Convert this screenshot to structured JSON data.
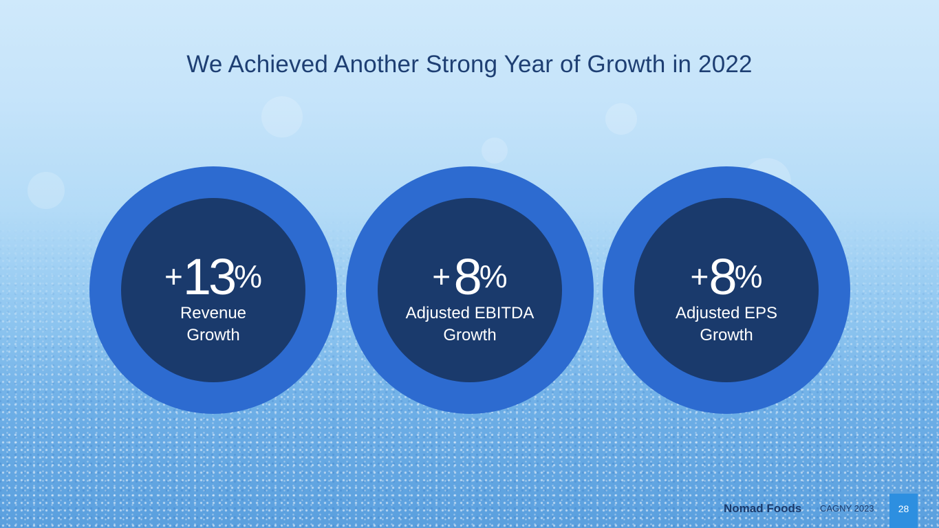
{
  "slide": {
    "title": "We Achieved Another Strong Year of Growth in 2022"
  },
  "metrics": [
    {
      "plus": "+",
      "value": "13",
      "unit": "%",
      "label_line1": "Revenue",
      "label_line2": "Growth"
    },
    {
      "plus": "+",
      "value": "8",
      "unit": "%",
      "label_line1": "Adjusted EBITDA",
      "label_line2": "Growth"
    },
    {
      "plus": "+",
      "value": "8",
      "unit": "%",
      "label_line1": "Adjusted EPS",
      "label_line2": "Growth"
    }
  ],
  "footer": {
    "brand": "Nomad Foods",
    "event": "CAGNY 2023",
    "page_number": "28"
  },
  "colors": {
    "title_text": "#1e3f73",
    "ring": "#2d6bd0",
    "disc": "#1a3a6c",
    "page_badge": "#2d8fe0"
  }
}
